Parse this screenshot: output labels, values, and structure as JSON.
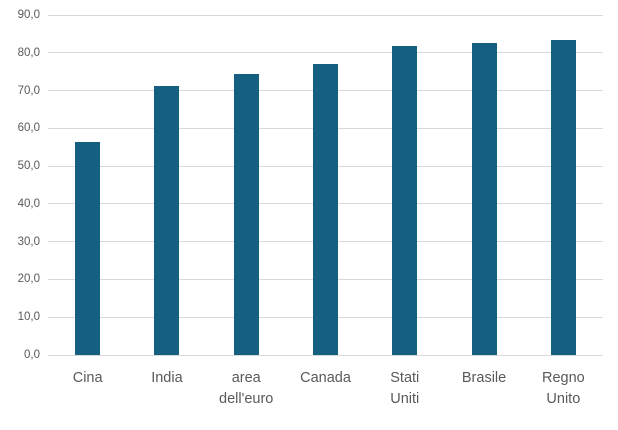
{
  "chart_data": {
    "type": "bar",
    "title": "",
    "xlabel": "",
    "ylabel": "",
    "categories": [
      "Cina",
      "India",
      "area dell'euro",
      "Canada",
      "Stati Uniti",
      "Brasile",
      "Regno Unito"
    ],
    "category_labels": [
      "Cina",
      "India",
      "area\ndell'euro",
      "Canada",
      "Stati\nUniti",
      "Brasile",
      "Regno\nUnito"
    ],
    "values": [
      56.3,
      71.2,
      74.3,
      77.0,
      81.7,
      82.7,
      83.4
    ],
    "ylim": [
      0,
      90
    ],
    "y_ticks": [
      {
        "value": 0,
        "label": "0,0"
      },
      {
        "value": 10,
        "label": "10,0"
      },
      {
        "value": 20,
        "label": "20,0"
      },
      {
        "value": 30,
        "label": "30,0"
      },
      {
        "value": 40,
        "label": "40,0"
      },
      {
        "value": 50,
        "label": "50,0"
      },
      {
        "value": 60,
        "label": "60,0"
      },
      {
        "value": 70,
        "label": "70,0"
      },
      {
        "value": 80,
        "label": "80,0"
      },
      {
        "value": 90,
        "label": "90,0"
      }
    ],
    "grid": true,
    "legend": false,
    "colors": {
      "bar": "#156082",
      "gridline": "#D9D9D9",
      "tick_label": "#595959",
      "category_label": "#595959"
    }
  }
}
